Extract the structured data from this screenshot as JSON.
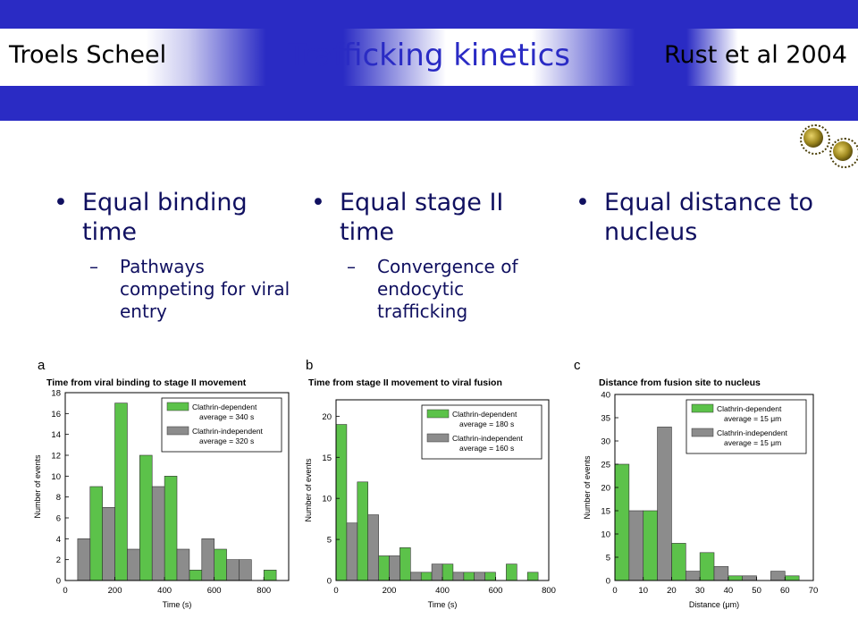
{
  "header": {
    "author": "Troels Scheel",
    "title": "Trafficking kinetics",
    "reference": "Rust et al 2004"
  },
  "bullets": [
    {
      "dot": "•",
      "main": "Equal binding time",
      "dash": "–",
      "sub": "Pathways competing for viral entry"
    },
    {
      "dot": "•",
      "main": "Equal stage II time",
      "dash": "–",
      "sub": "Convergence of endocytic trafficking"
    },
    {
      "dot": "•",
      "main": "Equal distance to nucleus",
      "dash": "",
      "sub": ""
    }
  ],
  "colors": {
    "bar_band": "#2a2bc4",
    "dependent": "#5cc24a",
    "independent": "#8c8c8c",
    "text": "#101060"
  },
  "icons": [
    "virus-icon",
    "virus-icon"
  ],
  "chart_data": [
    {
      "type": "bar",
      "panel": "a",
      "title": "Time from viral binding to stage II movement",
      "xlabel": "Time (s)",
      "ylabel": "Number of events",
      "xlim": [
        0,
        900
      ],
      "ylim": [
        0,
        18
      ],
      "xticks": [
        0,
        200,
        400,
        600,
        800
      ],
      "yticks": [
        0,
        2,
        4,
        6,
        8,
        10,
        12,
        14,
        16,
        18
      ],
      "bin_width": 50,
      "series": [
        {
          "name": "Clathrin-dependent",
          "note": "average = 340 s",
          "color": "#5cc24a",
          "x": [
            125,
            225,
            325,
            425,
            525,
            625,
            825
          ],
          "values": [
            9,
            17,
            12,
            10,
            1,
            3,
            1
          ]
        },
        {
          "name": "Clathrin-independent",
          "note": "average = 320 s",
          "color": "#8c8c8c",
          "x": [
            75,
            175,
            275,
            375,
            475,
            575,
            675,
            725
          ],
          "values": [
            4,
            7,
            3,
            9,
            3,
            4,
            2,
            2
          ]
        }
      ],
      "legend": "top-right"
    },
    {
      "type": "bar",
      "panel": "b",
      "title": "Time from stage II movement to viral fusion",
      "xlabel": "Time (s)",
      "ylabel": "Number of events",
      "xlim": [
        0,
        800
      ],
      "ylim": [
        0,
        22
      ],
      "xticks": [
        0,
        200,
        400,
        600,
        800
      ],
      "yticks": [
        0,
        5,
        10,
        15,
        20
      ],
      "bin_width": 40,
      "series": [
        {
          "name": "Clathrin-dependent",
          "note": "average = 180 s",
          "color": "#5cc24a",
          "x": [
            20,
            100,
            180,
            260,
            340,
            420,
            500,
            580,
            660,
            740
          ],
          "values": [
            19,
            12,
            3,
            4,
            1,
            2,
            1,
            1,
            2,
            1
          ]
        },
        {
          "name": "Clathrin-independent",
          "note": "average = 160 s",
          "color": "#8c8c8c",
          "x": [
            60,
            140,
            220,
            300,
            380,
            460,
            540
          ],
          "values": [
            7,
            8,
            3,
            1,
            2,
            1,
            1
          ]
        }
      ],
      "legend": "top-right"
    },
    {
      "type": "bar",
      "panel": "c",
      "title": "Distance from fusion site to nucleus",
      "xlabel": "Distance (μm)",
      "ylabel": "Number of events",
      "xlim": [
        0,
        70
      ],
      "ylim": [
        0,
        40
      ],
      "xticks": [
        0,
        10,
        20,
        30,
        40,
        50,
        60,
        70
      ],
      "yticks": [
        0,
        5,
        10,
        15,
        20,
        25,
        30,
        35,
        40
      ],
      "bin_width": 5,
      "series": [
        {
          "name": "Clathrin-dependent",
          "note": "average = 15 μm",
          "color": "#5cc24a",
          "x": [
            2.5,
            12.5,
            22.5,
            32.5,
            42.5,
            62.5
          ],
          "values": [
            25,
            15,
            8,
            6,
            1,
            1
          ]
        },
        {
          "name": "Clathrin-independent",
          "note": "average = 15 μm",
          "color": "#8c8c8c",
          "x": [
            7.5,
            17.5,
            27.5,
            37.5,
            47.5,
            57.5
          ],
          "values": [
            15,
            33,
            2,
            3,
            1,
            2
          ]
        }
      ],
      "legend": "top-right"
    }
  ]
}
